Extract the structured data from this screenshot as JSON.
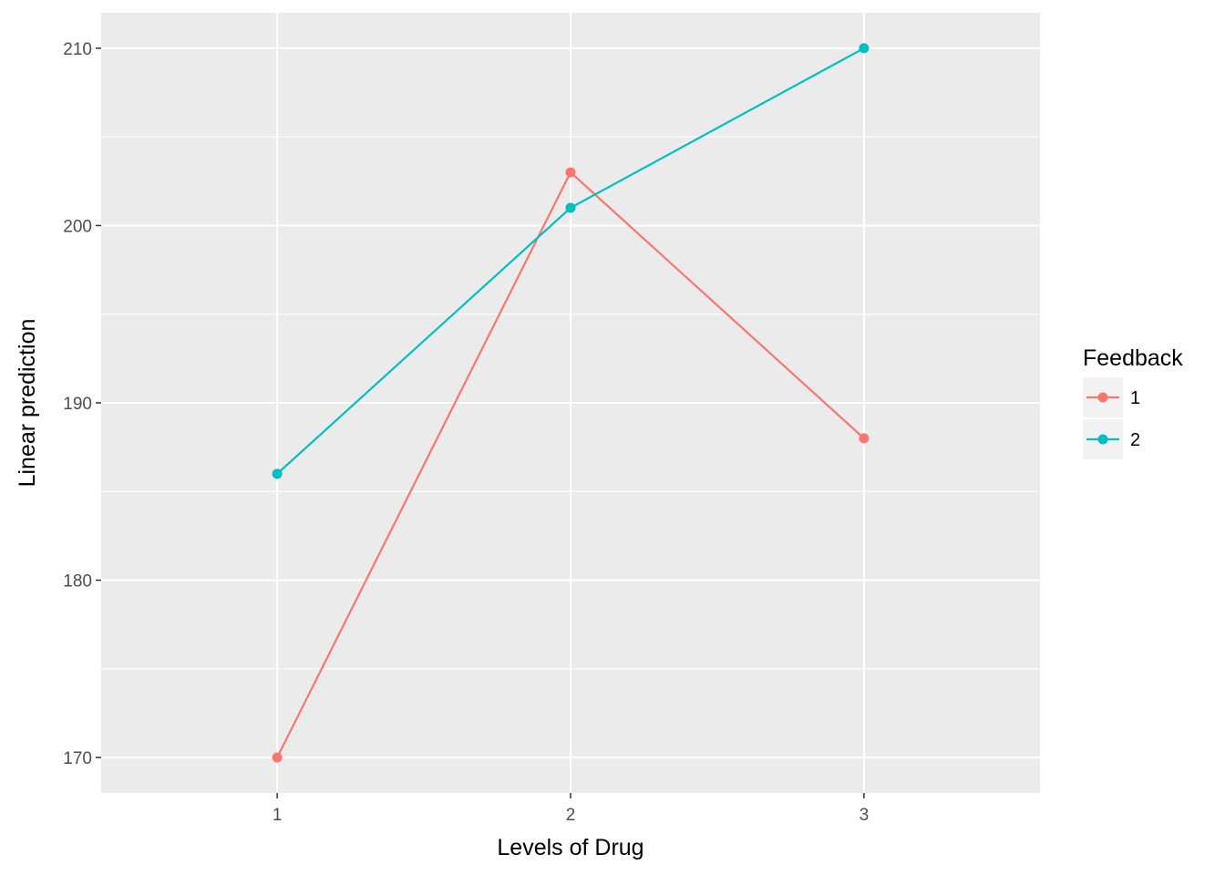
{
  "chart_data": {
    "type": "line",
    "title": "",
    "xlabel": "Levels of Drug",
    "ylabel": "Linear prediction",
    "categories": [
      "1",
      "2",
      "3"
    ],
    "x": [
      1,
      2,
      3
    ],
    "xlim": [
      0.4,
      3.6
    ],
    "ylim": [
      168,
      212
    ],
    "yticks": [
      170,
      180,
      190,
      200,
      210
    ],
    "grid": true,
    "legend": {
      "title": "Feedback",
      "position": "right"
    },
    "series": [
      {
        "name": "1",
        "color": "#F8766D",
        "values": [
          170,
          203,
          188
        ]
      },
      {
        "name": "2",
        "color": "#00BFC4",
        "values": [
          186,
          201,
          210
        ]
      }
    ]
  }
}
